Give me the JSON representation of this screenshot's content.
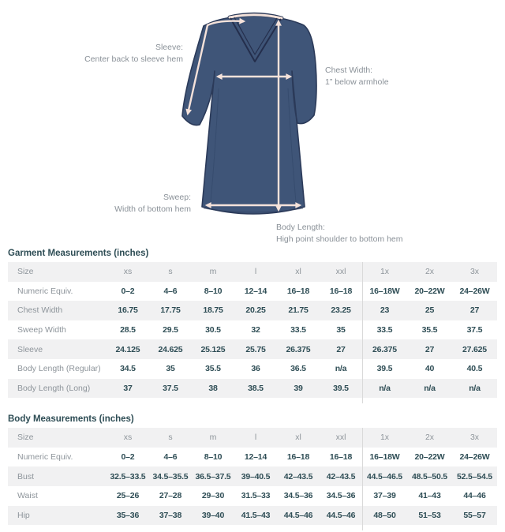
{
  "diagram": {
    "callouts": {
      "sleeve": {
        "title": "Sleeve:",
        "desc": "Center back to sleeve hem"
      },
      "chest_width": {
        "title": "Chest Width:",
        "desc": "1” below armhole"
      },
      "sweep": {
        "title": "Sweep:",
        "desc": "Width of bottom hem"
      },
      "body_length": {
        "title": "Body Length:",
        "desc": "High point shoulder to bottom hem"
      }
    },
    "colors": {
      "dress_fill": "#3f5578",
      "dress_outline": "#2b3a59",
      "neck_trim": "#242e4c",
      "collar": "#f3e1d9",
      "arrow": "#f5e2da",
      "fold": "#34496b"
    }
  },
  "chart_data": [
    {
      "type": "table",
      "title": "Garment Measurements (inches)",
      "size_header_label": "Size",
      "columns": [
        "xs",
        "s",
        "m",
        "l",
        "xl",
        "xxl",
        "1x",
        "2x",
        "3x"
      ],
      "divider_after_column": 6,
      "rows": [
        {
          "label": "Numeric Equiv.",
          "values": [
            "0–2",
            "4–6",
            "8–10",
            "12–14",
            "16–18",
            "16–18",
            "16–18W",
            "20–22W",
            "24–26W"
          ]
        },
        {
          "label": "Chest Width",
          "values": [
            "16.75",
            "17.75",
            "18.75",
            "20.25",
            "21.75",
            "23.25",
            "23",
            "25",
            "27"
          ]
        },
        {
          "label": "Sweep Width",
          "values": [
            "28.5",
            "29.5",
            "30.5",
            "32",
            "33.5",
            "35",
            "33.5",
            "35.5",
            "37.5"
          ]
        },
        {
          "label": "Sleeve",
          "values": [
            "24.125",
            "24.625",
            "25.125",
            "25.75",
            "26.375",
            "27",
            "26.375",
            "27",
            "27.625"
          ]
        },
        {
          "label": "Body Length (Regular)",
          "values": [
            "34.5",
            "35",
            "35.5",
            "36",
            "36.5",
            "n/a",
            "39.5",
            "40",
            "40.5"
          ]
        },
        {
          "label": "Body Length (Long)",
          "values": [
            "37",
            "37.5",
            "38",
            "38.5",
            "39",
            "39.5",
            "n/a",
            "n/a",
            "n/a"
          ]
        }
      ]
    },
    {
      "type": "table",
      "title": "Body Measurements (inches)",
      "size_header_label": "Size",
      "columns": [
        "xs",
        "s",
        "m",
        "l",
        "xl",
        "xxl",
        "1x",
        "2x",
        "3x"
      ],
      "divider_after_column": 6,
      "rows": [
        {
          "label": "Numeric Equiv.",
          "values": [
            "0–2",
            "4–6",
            "8–10",
            "12–14",
            "16–18",
            "16–18",
            "16–18W",
            "20–22W",
            "24–26W"
          ]
        },
        {
          "label": "Bust",
          "values": [
            "32.5–33.5",
            "34.5–35.5",
            "36.5–37.5",
            "39–40.5",
            "42–43.5",
            "42–43.5",
            "44.5–46.5",
            "48.5–50.5",
            "52.5–54.5"
          ]
        },
        {
          "label": "Waist",
          "values": [
            "25–26",
            "27–28",
            "29–30",
            "31.5–33",
            "34.5–36",
            "34.5–36",
            "37–39",
            "41–43",
            "44–46"
          ]
        },
        {
          "label": "Hip",
          "values": [
            "35–36",
            "37–38",
            "39–40",
            "41.5–43",
            "44.5–46",
            "44.5–46",
            "48–50",
            "51–53",
            "55–57"
          ]
        }
      ]
    }
  ]
}
